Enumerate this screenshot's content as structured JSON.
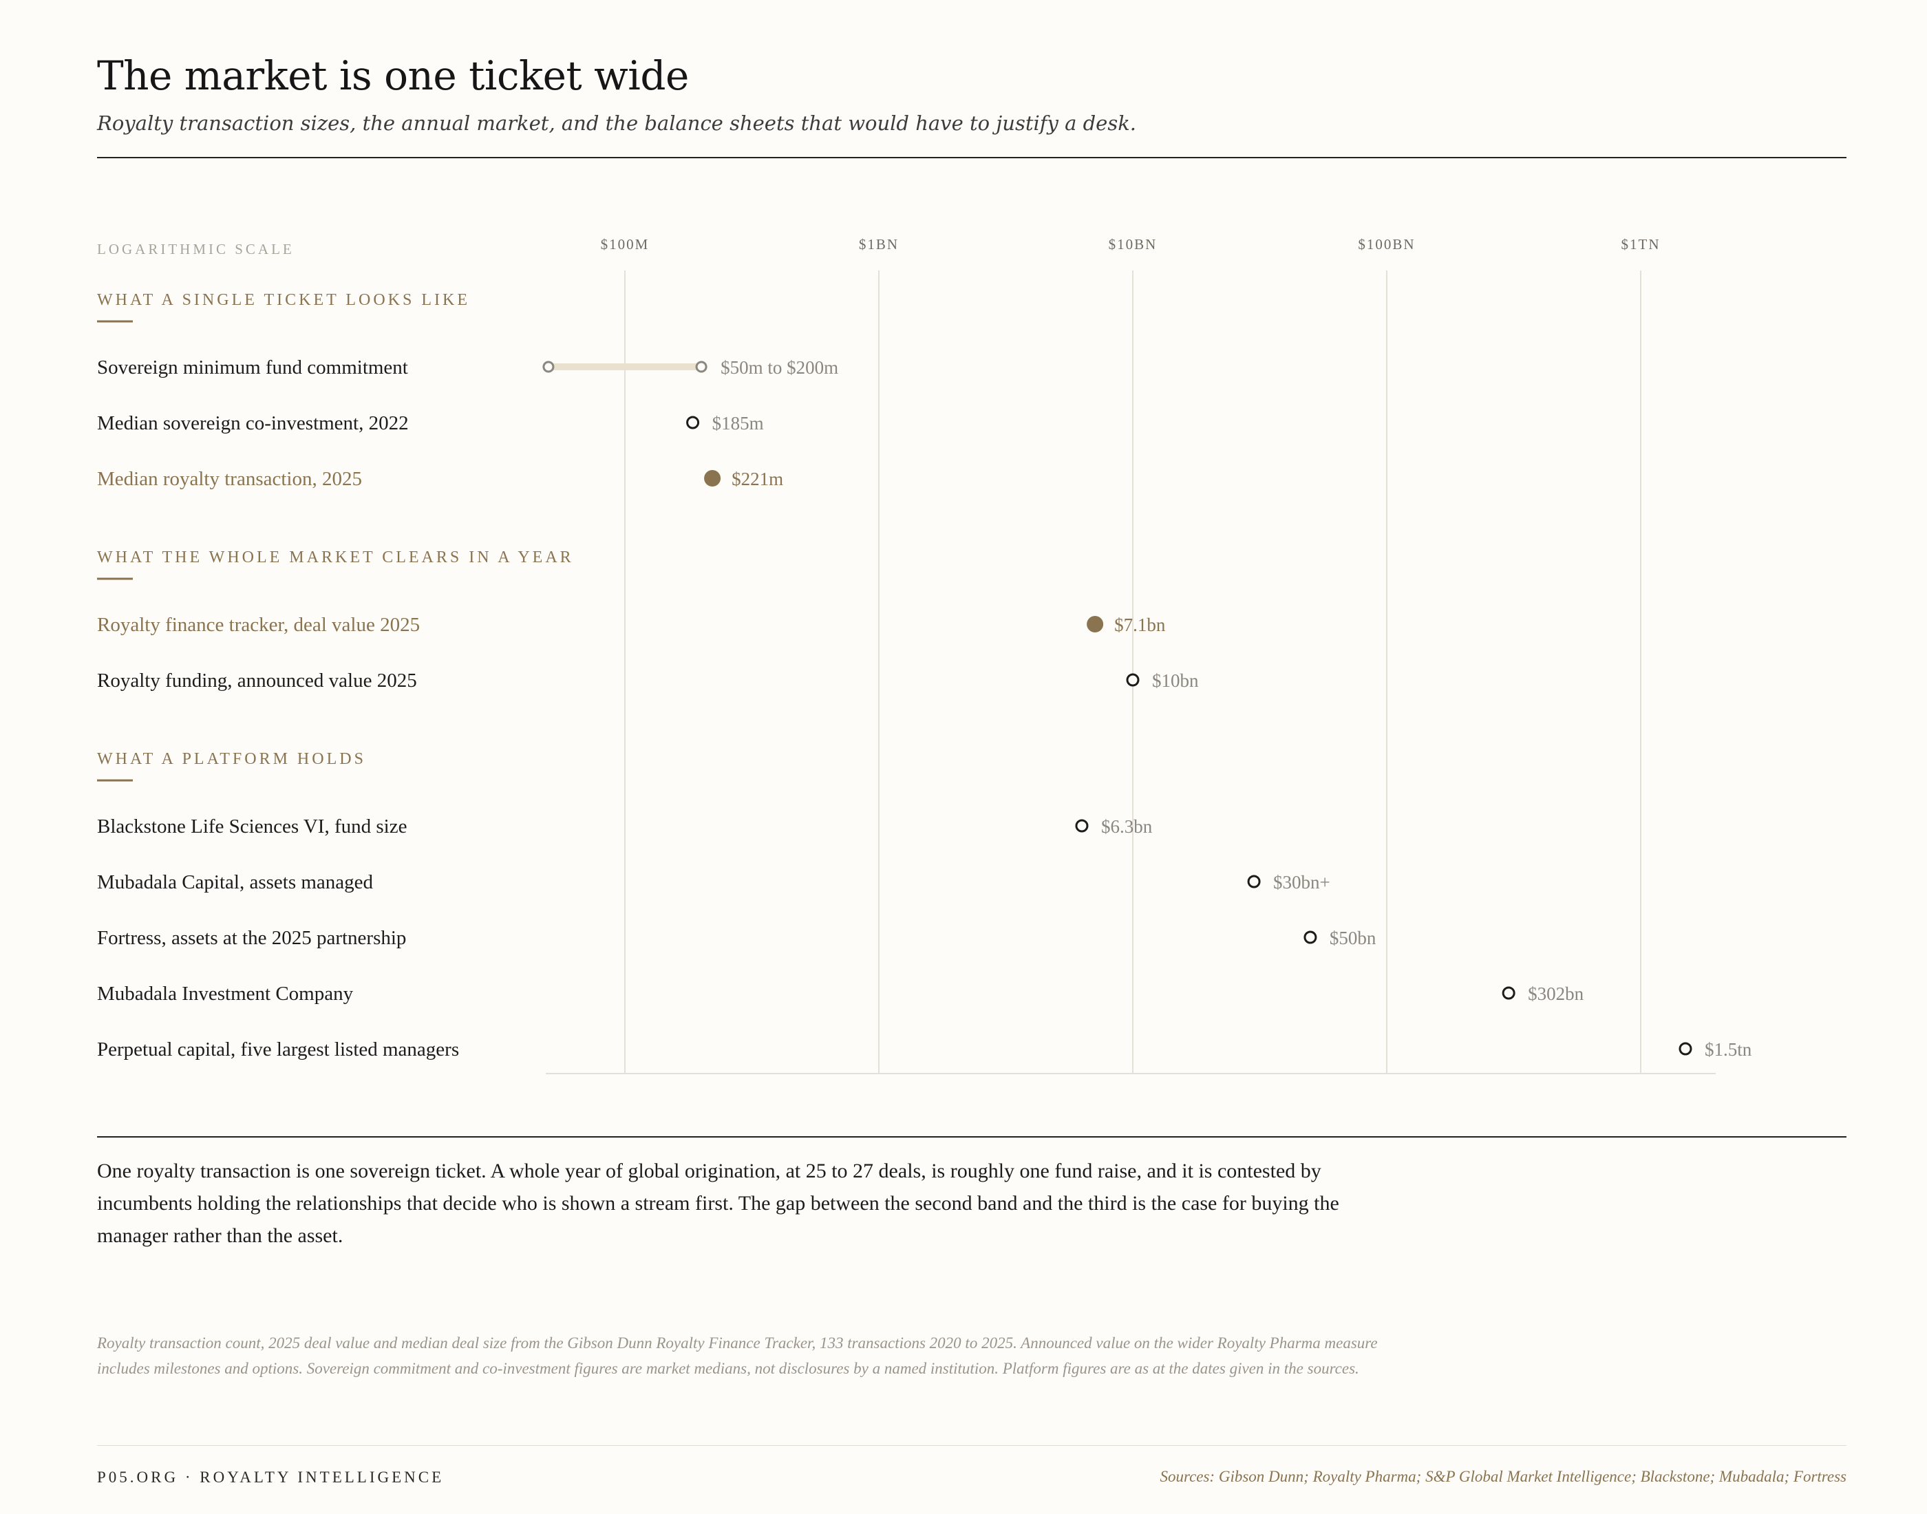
{
  "header": {
    "title": "The market is one ticket wide",
    "subtitle": "Royalty transaction sizes, the annual market, and the balance sheets that would have to justify a desk."
  },
  "chart_data": {
    "type": "scatter",
    "scale": "log",
    "scale_label": "LOGARITHMIC SCALE",
    "unit": "USD",
    "axis_ticks": [
      {
        "value": 100000000,
        "label": "$100M"
      },
      {
        "value": 1000000000,
        "label": "$1BN"
      },
      {
        "value": 10000000000,
        "label": "$10BN"
      },
      {
        "value": 100000000000,
        "label": "$100BN"
      },
      {
        "value": 1000000000000,
        "label": "$1TN"
      }
    ],
    "x_range": [
      30000000,
      3000000000000
    ],
    "grid": true,
    "highlight_color": "#8a734f",
    "range_color": "#e9e1cd",
    "sections": [
      {
        "title": "WHAT A SINGLE TICKET LOOKS LIKE",
        "rows": [
          {
            "label": "Sovereign minimum fund commitment",
            "type": "range",
            "low": 50000000,
            "high": 200000000,
            "value_label": "$50m to $200m",
            "highlight": false
          },
          {
            "label": "Median sovereign co-investment, 2022",
            "type": "point",
            "value": 185000000,
            "value_label": "$185m",
            "highlight": false
          },
          {
            "label": "Median royalty transaction, 2025",
            "type": "point",
            "value": 221000000,
            "value_label": "$221m",
            "highlight": true
          }
        ]
      },
      {
        "title": "WHAT THE WHOLE MARKET CLEARS IN A YEAR",
        "rows": [
          {
            "label": "Royalty finance tracker, deal value 2025",
            "type": "point",
            "value": 7100000000,
            "value_label": "$7.1bn",
            "highlight": true
          },
          {
            "label": "Royalty funding, announced value 2025",
            "type": "point",
            "value": 10000000000,
            "value_label": "$10bn",
            "highlight": false
          }
        ]
      },
      {
        "title": "WHAT A PLATFORM HOLDS",
        "rows": [
          {
            "label": "Blackstone Life Sciences VI, fund size",
            "type": "point",
            "value": 6300000000,
            "value_label": "$6.3bn",
            "highlight": false
          },
          {
            "label": "Mubadala Capital, assets managed",
            "type": "point",
            "value": 30000000000,
            "value_label": "$30bn+",
            "highlight": false
          },
          {
            "label": "Fortress, assets at the 2025 partnership",
            "type": "point",
            "value": 50000000000,
            "value_label": "$50bn",
            "highlight": false
          },
          {
            "label": "Mubadala Investment Company",
            "type": "point",
            "value": 302000000000,
            "value_label": "$302bn",
            "highlight": false
          },
          {
            "label": "Perpetual capital, five largest listed managers",
            "type": "point",
            "value": 1500000000000,
            "value_label": "$1.5tn",
            "highlight": false
          }
        ]
      }
    ]
  },
  "commentary": "One royalty transaction is one sovereign ticket. A whole year of global origination, at 25 to 27 deals, is roughly one fund raise, and it is contested by incumbents holding the relationships that decide who is shown a stream first. The gap between the second band and the third is the case for buying the manager rather than the asset.",
  "notes": "Royalty transaction count, 2025 deal value and median deal size from the Gibson Dunn Royalty Finance Tracker, 133 transactions 2020 to 2025. Announced value on the wider Royalty Pharma measure includes milestones and options. Sovereign commitment and co-investment figures are market medians, not disclosures by a named institution. Platform figures are as at the dates given in the sources.",
  "footer": {
    "brand": "P05.ORG · ROYALTY INTELLIGENCE",
    "sources": "Sources: Gibson Dunn; Royalty Pharma; S&P Global Market Intelligence; Blackstone; Mubadala; Fortress"
  }
}
